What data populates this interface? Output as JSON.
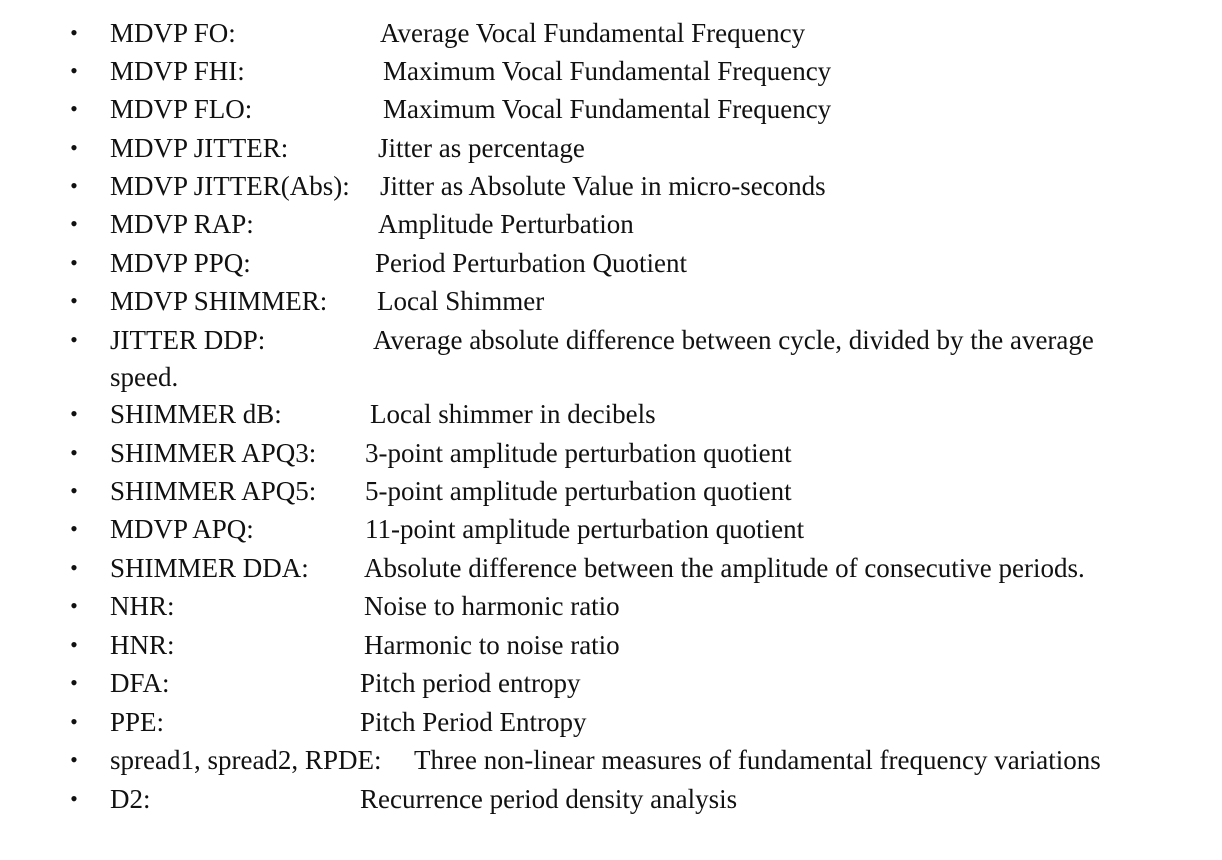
{
  "document": {
    "bullet_char": "•",
    "items": [
      {
        "term": "MDVP FO:",
        "definition": "Average Vocal Fundamental Frequency"
      },
      {
        "term": "MDVP FHI:",
        "definition": "Maximum Vocal Fundamental Frequency"
      },
      {
        "term": "MDVP FLO:",
        "definition": "Maximum Vocal Fundamental Frequency"
      },
      {
        "term": "MDVP JITTER:",
        "definition": "Jitter as percentage"
      },
      {
        "term": "MDVP JITTER(Abs):",
        "definition": "Jitter as Absolute Value in micro-seconds"
      },
      {
        "term": "MDVP RAP:",
        "definition": "Amplitude Perturbation"
      },
      {
        "term": "MDVP PPQ:",
        "definition": "Period Perturbation Quotient"
      },
      {
        "term": "MDVP SHIMMER:",
        "definition": "Local Shimmer"
      },
      {
        "term": "JITTER DDP:",
        "definition": "Average absolute difference between cycle, divided by the average",
        "continuation": "speed."
      },
      {
        "term": "SHIMMER dB:",
        "definition": "Local shimmer in decibels"
      },
      {
        "term": "SHIMMER APQ3:",
        "definition": "3-point amplitude perturbation quotient"
      },
      {
        "term": "SHIMMER APQ5:",
        "definition": "5-point amplitude perturbation quotient"
      },
      {
        "term": "MDVP APQ:",
        "definition": "11-point amplitude perturbation quotient"
      },
      {
        "term": "SHIMMER DDA:",
        "definition": "Absolute difference between the amplitude of consecutive periods."
      },
      {
        "term": "NHR:",
        "definition": "Noise to harmonic ratio"
      },
      {
        "term": "HNR:",
        "definition": "Harmonic to noise ratio"
      },
      {
        "term": "DFA:",
        "definition": "Pitch period entropy"
      },
      {
        "term": "PPE:",
        "definition": "Pitch Period Entropy"
      },
      {
        "term": "spread1, spread2, RPDE:",
        "definition": "Three non-linear measures of fundamental frequency variations"
      },
      {
        "term": "D2:",
        "definition": "Recurrence period density analysis"
      }
    ]
  }
}
